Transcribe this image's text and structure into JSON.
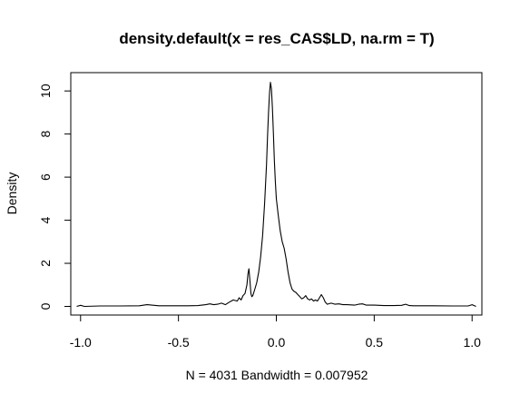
{
  "chart_data": {
    "type": "line",
    "title": "density.default(x = res_CAS$LD, na.rm = T)",
    "xlabel": "N = 4031   Bandwidth = 0.007952",
    "ylabel": "Density",
    "xlim": [
      -1.05,
      1.05
    ],
    "ylim": [
      -0.4,
      10.85
    ],
    "x_ticks": [
      -1.0,
      -0.5,
      0.0,
      0.5,
      1.0
    ],
    "x_tick_labels": [
      "-1.0",
      "-0.5",
      "0.0",
      "0.5",
      "1.0"
    ],
    "y_ticks": [
      0,
      2,
      4,
      6,
      8,
      10
    ],
    "y_tick_labels": [
      "0",
      "2",
      "4",
      "6",
      "8",
      "10"
    ],
    "grid": false,
    "legend": "none",
    "series": [
      {
        "color": "#000000",
        "x": [
          -1.02,
          -1.0,
          -0.98,
          -0.9,
          -0.8,
          -0.7,
          -0.66,
          -0.6,
          -0.5,
          -0.45,
          -0.4,
          -0.36,
          -0.34,
          -0.32,
          -0.3,
          -0.28,
          -0.26,
          -0.24,
          -0.22,
          -0.2,
          -0.19,
          -0.18,
          -0.17,
          -0.16,
          -0.15,
          -0.145,
          -0.14,
          -0.135,
          -0.13,
          -0.125,
          -0.12,
          -0.11,
          -0.1,
          -0.09,
          -0.08,
          -0.07,
          -0.06,
          -0.05,
          -0.045,
          -0.04,
          -0.035,
          -0.03,
          -0.025,
          -0.02,
          -0.015,
          -0.01,
          -0.005,
          0.0,
          0.01,
          0.02,
          0.03,
          0.04,
          0.05,
          0.06,
          0.07,
          0.08,
          0.09,
          0.1,
          0.11,
          0.12,
          0.13,
          0.14,
          0.15,
          0.16,
          0.17,
          0.18,
          0.19,
          0.2,
          0.21,
          0.22,
          0.23,
          0.24,
          0.25,
          0.26,
          0.28,
          0.3,
          0.32,
          0.34,
          0.36,
          0.4,
          0.42,
          0.44,
          0.46,
          0.5,
          0.55,
          0.6,
          0.64,
          0.66,
          0.68,
          0.7,
          0.8,
          0.9,
          0.98,
          1.0,
          1.02
        ],
        "y": [
          0.0,
          0.05,
          0.0,
          0.02,
          0.02,
          0.03,
          0.08,
          0.03,
          0.03,
          0.03,
          0.04,
          0.08,
          0.12,
          0.08,
          0.1,
          0.15,
          0.08,
          0.2,
          0.3,
          0.25,
          0.4,
          0.3,
          0.5,
          0.6,
          1.0,
          1.5,
          1.75,
          1.2,
          0.6,
          0.45,
          0.5,
          0.8,
          1.1,
          1.6,
          2.3,
          3.3,
          4.8,
          6.6,
          7.9,
          9.0,
          9.9,
          10.4,
          10.1,
          9.2,
          8.0,
          6.8,
          5.8,
          5.0,
          4.2,
          3.5,
          3.0,
          2.7,
          2.2,
          1.6,
          1.1,
          0.8,
          0.7,
          0.65,
          0.55,
          0.45,
          0.35,
          0.4,
          0.5,
          0.35,
          0.3,
          0.35,
          0.25,
          0.3,
          0.25,
          0.4,
          0.55,
          0.4,
          0.2,
          0.1,
          0.15,
          0.1,
          0.12,
          0.08,
          0.08,
          0.06,
          0.1,
          0.12,
          0.06,
          0.06,
          0.04,
          0.04,
          0.05,
          0.1,
          0.04,
          0.03,
          0.03,
          0.02,
          0.02,
          0.08,
          0.0
        ]
      }
    ]
  }
}
